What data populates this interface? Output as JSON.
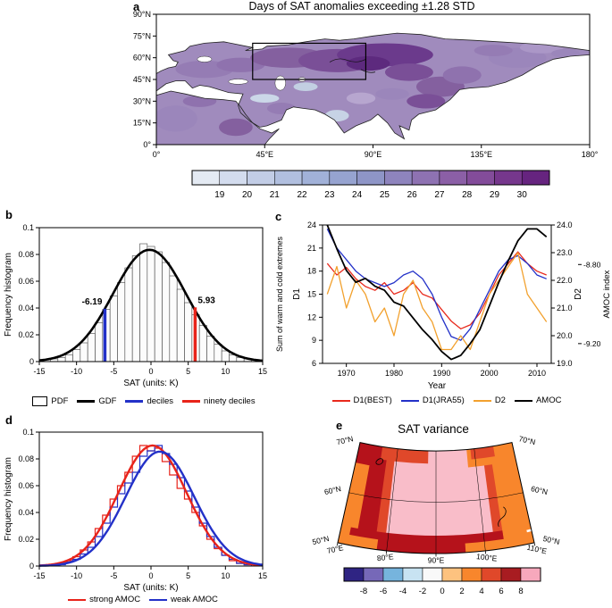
{
  "panels": {
    "a": {
      "label": "a",
      "title": "Days of SAT anomalies exceeding ±1.28 STD"
    },
    "b": {
      "label": "b"
    },
    "c": {
      "label": "c"
    },
    "d": {
      "label": "d"
    },
    "e": {
      "label": "e",
      "title": "SAT variance"
    }
  },
  "chart_data": [
    {
      "id": "a",
      "type": "heatmap",
      "title": "Days of SAT anomalies exceeding ±1.28 STD",
      "region": "Eurasia and northern Africa, 0-180E, 0-90N",
      "x_ticks": [
        "0°",
        "45°E",
        "90°E",
        "135°E",
        "180°"
      ],
      "x_tick_lons": [
        0,
        45,
        90,
        135,
        180
      ],
      "y_ticks": [
        "90°N",
        "75°N",
        "60°N",
        "45°N",
        "30°N",
        "15°N",
        "0°"
      ],
      "y_tick_lats": [
        90,
        75,
        60,
        45,
        30,
        15,
        0
      ],
      "colorbar_ticks": [
        19,
        20,
        21,
        22,
        23,
        24,
        25,
        26,
        27,
        28,
        29,
        30
      ],
      "colorbar_colors": [
        "#e4eaf3",
        "#d3dcee",
        "#c2cde6",
        "#b1bfdf",
        "#a1b1d8",
        "#96a3d0",
        "#8e95c7",
        "#8e84bd",
        "#8e72b2",
        "#8b5fa6",
        "#834c9a",
        "#76378c",
        "#66247f"
      ],
      "highlight_box": {
        "lon": [
          40,
          87
        ],
        "lat": [
          45,
          70
        ]
      }
    },
    {
      "id": "b",
      "type": "bar",
      "xlabel": "SAT (units: K)",
      "ylabel": "Frequency histogram",
      "xlim": [
        -15,
        15
      ],
      "ylim": [
        0,
        0.1
      ],
      "x_ticks": [
        -15,
        -10,
        -5,
        0,
        5,
        10,
        15
      ],
      "y_tick_values": [
        0,
        0.02,
        0.04,
        0.06,
        0.08,
        0.1
      ],
      "y_tick_labels": [
        "0",
        "0.02",
        "0.04",
        "0.06",
        "0.08",
        "0.1"
      ],
      "bin_centers": [
        -13,
        -12,
        -11,
        -10,
        -9,
        -8,
        -7,
        -6,
        -5,
        -4,
        -3,
        -2,
        -1,
        0,
        1,
        2,
        3,
        4,
        5,
        6,
        7,
        8,
        9,
        10,
        11,
        12,
        13
      ],
      "frequencies": [
        0.002,
        0.003,
        0.005,
        0.009,
        0.014,
        0.021,
        0.029,
        0.039,
        0.049,
        0.059,
        0.07,
        0.079,
        0.088,
        0.086,
        0.082,
        0.074,
        0.064,
        0.054,
        0.044,
        0.035,
        0.027,
        0.019,
        0.013,
        0.008,
        0.005,
        0.003,
        0.002
      ],
      "gaussian_fit": {
        "amp": 0.0835,
        "mean": -0.2,
        "sigma": 4.9
      },
      "decile_lines": [
        {
          "value": -6.19,
          "label": "-6.19",
          "color": "#2331c8",
          "height": 0.0395,
          "side": "left"
        },
        {
          "value": 5.93,
          "label": "5.93",
          "color": "#e8231a",
          "height": 0.0405,
          "side": "right"
        }
      ],
      "legend": [
        {
          "label": "PDF",
          "swatch": "open-box"
        },
        {
          "label": "GDF",
          "swatch": "line",
          "color": "#000000",
          "weight": 3
        },
        {
          "label": "deciles",
          "swatch": "line",
          "color": "#2331c8",
          "weight": 3
        },
        {
          "label": "ninety deciles",
          "swatch": "line",
          "color": "#e8231a",
          "weight": 3
        }
      ]
    },
    {
      "id": "c",
      "type": "line",
      "xlabel": "Year",
      "ylabel_left": "Sum of warm and cold extremes",
      "ylabel_left2": "D1",
      "ylabel_right": "D2",
      "ylabel_far_right": "AMOC index",
      "xlim": [
        1965,
        2013
      ],
      "x_ticks": [
        1970,
        1980,
        1990,
        2000,
        2010
      ],
      "d1_lim": [
        6,
        24
      ],
      "d1_ticks": [
        6,
        9,
        12,
        15,
        18,
        21,
        24
      ],
      "d2_lim": [
        19,
        24
      ],
      "d2_tick_values": [
        19,
        20,
        21,
        22,
        23,
        24
      ],
      "d2_tick_labels": [
        "19.0",
        "20.0",
        "21.0",
        "22.0",
        "23.0",
        "24.0"
      ],
      "amoc_lim": [
        -9.3,
        -8.6
      ],
      "amoc_tick_values": [
        -8.8,
        -9.2
      ],
      "amoc_tick_labels": [
        "-8.80",
        "-9.20"
      ],
      "years": [
        1966,
        1968,
        1970,
        1972,
        1974,
        1976,
        1978,
        1980,
        1982,
        1984,
        1986,
        1988,
        1990,
        1992,
        1994,
        1996,
        1998,
        2000,
        2002,
        2004,
        2006,
        2008,
        2010,
        2012
      ],
      "series": [
        {
          "name": "D1(BEST)",
          "axis": "d1",
          "color": "#e8291c",
          "width": 1.3,
          "values": [
            19.0,
            17.5,
            18.5,
            17.0,
            16.0,
            15.5,
            16.5,
            15.0,
            15.5,
            16.5,
            15.0,
            14.5,
            13.0,
            11.5,
            10.5,
            11.0,
            12.5,
            15.0,
            17.5,
            19.0,
            20.5,
            19.0,
            18.0,
            17.5
          ]
        },
        {
          "name": "D1(JRA55)",
          "axis": "d1",
          "color": "#2331c8",
          "width": 1.3,
          "values": [
            23.5,
            21.0,
            19.5,
            18.0,
            17.0,
            16.5,
            16.0,
            16.5,
            17.5,
            18.0,
            17.0,
            15.0,
            12.0,
            9.5,
            9.0,
            10.5,
            13.0,
            15.5,
            18.0,
            19.5,
            20.0,
            19.0,
            17.5,
            17.0
          ]
        },
        {
          "name": "D2",
          "axis": "d2",
          "color": "#f2a12e",
          "width": 1.3,
          "values": [
            21.5,
            22.5,
            21.0,
            22.0,
            21.5,
            20.5,
            21.0,
            20.0,
            21.5,
            22.0,
            21.0,
            20.5,
            19.5,
            19.5,
            20.0,
            19.5,
            20.5,
            21.5,
            22.0,
            22.5,
            23.0,
            21.5,
            21.0,
            20.5
          ]
        },
        {
          "name": "AMOC",
          "axis": "amoc",
          "color": "#000000",
          "width": 1.8,
          "values": [
            -8.6,
            -8.72,
            -8.83,
            -8.89,
            -8.87,
            -8.91,
            -8.93,
            -8.99,
            -9.01,
            -9.07,
            -9.13,
            -9.18,
            -9.24,
            -9.28,
            -9.26,
            -9.2,
            -9.13,
            -9.01,
            -8.89,
            -8.78,
            -8.68,
            -8.62,
            -8.62,
            -8.66
          ]
        }
      ],
      "legend": [
        {
          "label": "D1(BEST)",
          "swatch": "line",
          "color": "#e8291c",
          "weight": 2
        },
        {
          "label": "D1(JRA55)",
          "swatch": "line",
          "color": "#2331c8",
          "weight": 2
        },
        {
          "label": "D2",
          "swatch": "line",
          "color": "#f2a12e",
          "weight": 2
        },
        {
          "label": "AMOC",
          "swatch": "line",
          "color": "#000000",
          "weight": 2
        }
      ]
    },
    {
      "id": "d",
      "type": "line",
      "subtype": "step-histogram-with-fits",
      "xlabel": "SAT (units: K)",
      "ylabel": "Frequency histogram",
      "xlim": [
        -15,
        15
      ],
      "ylim": [
        0,
        0.1
      ],
      "x_ticks": [
        -15,
        -10,
        -5,
        0,
        5,
        10,
        15
      ],
      "y_tick_values": [
        0,
        0.02,
        0.04,
        0.06,
        0.08,
        0.1
      ],
      "y_tick_labels": [
        "0",
        "0.02",
        "0.04",
        "0.06",
        "0.08",
        "0.1"
      ],
      "bin_centers": [
        -13,
        -12,
        -11,
        -10,
        -9,
        -8,
        -7,
        -6,
        -5,
        -4,
        -3,
        -2,
        -1,
        0,
        1,
        2,
        3,
        4,
        5,
        6,
        7,
        8,
        9,
        10,
        11,
        12,
        13
      ],
      "series": [
        {
          "name": "strong AMOC",
          "color": "#e8231a",
          "step_values": [
            0.001,
            0.002,
            0.004,
            0.007,
            0.012,
            0.018,
            0.028,
            0.038,
            0.05,
            0.06,
            0.07,
            0.082,
            0.09,
            0.086,
            0.088,
            0.078,
            0.068,
            0.058,
            0.05,
            0.04,
            0.03,
            0.02,
            0.013,
            0.008,
            0.004,
            0.002,
            0.001
          ],
          "fit": {
            "amp": 0.09,
            "mean": 0.2,
            "sigma": 4.6
          }
        },
        {
          "name": "weak AMOC",
          "color": "#2331c8",
          "step_values": [
            0.001,
            0.001,
            0.003,
            0.005,
            0.009,
            0.014,
            0.022,
            0.032,
            0.044,
            0.054,
            0.062,
            0.07,
            0.082,
            0.086,
            0.09,
            0.084,
            0.076,
            0.066,
            0.056,
            0.044,
            0.032,
            0.022,
            0.014,
            0.008,
            0.005,
            0.002,
            0.001
          ],
          "fit": {
            "amp": 0.0855,
            "mean": 1.2,
            "sigma": 4.6
          }
        }
      ],
      "legend": [
        {
          "label": "strong AMOC",
          "swatch": "line",
          "color": "#e8231a",
          "weight": 2.5
        },
        {
          "label": "weak AMOC",
          "swatch": "line",
          "color": "#2331c8",
          "weight": 2.5
        }
      ]
    },
    {
      "id": "e",
      "type": "heatmap",
      "title": "SAT variance",
      "region": "50N-70N, 70E-110E polar sector",
      "lat_labels": [
        "70°N",
        "60°N",
        "50°N"
      ],
      "lat_values": [
        70,
        60,
        50
      ],
      "lon_labels": [
        "70°E",
        "80°E",
        "90°E",
        "100°E",
        "110°E"
      ],
      "lon_values": [
        70,
        80,
        90,
        100,
        110
      ],
      "colorbar_ticks": [
        -8,
        -6,
        -4,
        -2,
        0,
        2,
        4,
        6,
        8
      ],
      "colorbar_colors": [
        "#2f2483",
        "#7668b8",
        "#76b4dd",
        "#c8e3f2",
        "#f9f9f9",
        "#fdc27f",
        "#f8862c",
        "#e0482a",
        "#a81c21",
        "#f7a8bc"
      ]
    }
  ]
}
